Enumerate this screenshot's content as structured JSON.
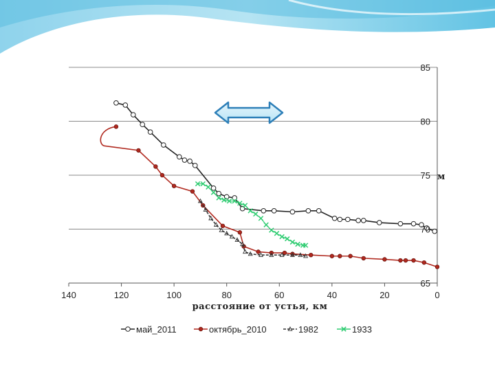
{
  "chart_data": {
    "type": "line",
    "title": "",
    "xlabel": "расстояние от устья, км",
    "ylabel": "м",
    "xlim": [
      140,
      0
    ],
    "ylim": [
      65,
      85
    ],
    "x_ticks": [
      140,
      120,
      100,
      80,
      60,
      40,
      20,
      0
    ],
    "y_ticks": [
      65,
      70,
      75,
      80,
      85
    ],
    "x_tick_labels": [
      "140",
      "120",
      "100",
      "80",
      "60",
      "40",
      "20",
      "0"
    ],
    "y_tick_labels": [
      "65",
      "70",
      "75",
      "80",
      "85"
    ],
    "legend_position": "bottom",
    "annotations": [
      "double-headed horizontal arrow"
    ],
    "series": [
      {
        "name": "май_2011",
        "color": "#222222",
        "marker": "circle-open",
        "x": [
          122,
          118.5,
          115.5,
          112,
          109,
          104,
          98,
          96,
          94,
          92,
          85,
          83,
          80,
          77,
          74,
          66,
          62,
          55,
          49,
          45,
          39,
          37,
          34,
          30,
          28,
          22,
          14,
          9,
          6,
          4,
          1
        ],
        "y": [
          81.7,
          81.5,
          80.6,
          79.7,
          79,
          77.8,
          76.7,
          76.4,
          76.3,
          75.9,
          73.8,
          73.3,
          73,
          72.9,
          71.9,
          71.7,
          71.7,
          71.6,
          71.7,
          71.7,
          71,
          70.9,
          70.9,
          70.8,
          70.8,
          70.6,
          70.5,
          70.5,
          70.4,
          70.1,
          69.8
        ]
      },
      {
        "name": "октябрь_2010",
        "color": "#b0281e",
        "marker": "circle-filled",
        "x": [
          122,
          113.5,
          107,
          104.5,
          100,
          93,
          89,
          81.5,
          75,
          73.5,
          68,
          63,
          58,
          55,
          48,
          40,
          37,
          33,
          28,
          20,
          14,
          12,
          9,
          5,
          0
        ],
        "y": [
          79.5,
          77.3,
          75.8,
          75,
          74,
          73.5,
          72.2,
          70.3,
          69.7,
          68.4,
          67.9,
          67.8,
          67.8,
          67.7,
          67.6,
          67.5,
          67.5,
          67.5,
          67.3,
          67.2,
          67.1,
          67.1,
          67.1,
          66.9,
          66.5
        ]
      },
      {
        "name": "1982",
        "color": "#333333",
        "marker": "triangle",
        "x": [
          90,
          88,
          86,
          84,
          82,
          80,
          78,
          76,
          74,
          73,
          71,
          67,
          63,
          59,
          55,
          52,
          50
        ],
        "y": [
          72.6,
          71.8,
          71,
          70.4,
          69.9,
          69.6,
          69.3,
          69,
          68.6,
          67.9,
          67.7,
          67.6,
          67.6,
          67.6,
          67.6,
          67.6,
          67.5
        ]
      },
      {
        "name": "1933",
        "color": "#2ecc71",
        "marker": "x",
        "x": [
          91,
          89,
          87,
          85,
          83,
          81,
          79,
          77,
          75,
          73,
          71,
          69,
          67,
          65,
          63,
          61,
          59,
          57,
          55,
          53,
          51,
          50
        ],
        "y": [
          74.2,
          74.2,
          73.9,
          73.4,
          72.9,
          72.7,
          72.6,
          72.6,
          72.4,
          72.2,
          71.7,
          71.4,
          71,
          70.4,
          69.9,
          69.6,
          69.3,
          69.1,
          68.8,
          68.6,
          68.5,
          68.5
        ]
      }
    ]
  }
}
